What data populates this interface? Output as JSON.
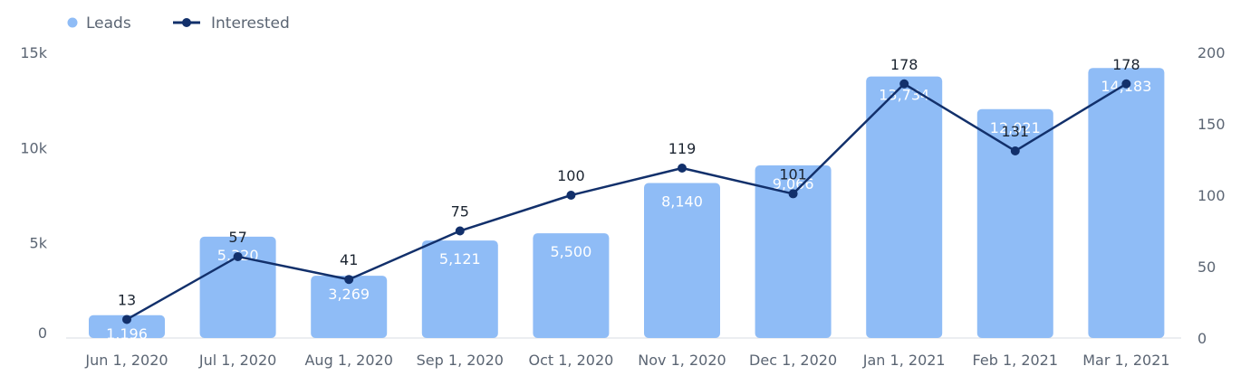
{
  "colors": {
    "bars": "#8fbcf6",
    "line": "#12306b",
    "axis_text": "#5b6573",
    "baseline": "#d9dde3"
  },
  "legend": {
    "leads": "Leads",
    "interested": "Interested"
  },
  "chart_data": {
    "type": "bar",
    "categories": [
      "Jun 1, 2020",
      "Jul 1, 2020",
      "Aug 1, 2020",
      "Sep 1, 2020",
      "Oct 1, 2020",
      "Nov 1, 2020",
      "Dec 1, 2020",
      "Jan 1, 2021",
      "Feb 1, 2021",
      "Mar 1, 2021"
    ],
    "series": [
      {
        "name": "Leads",
        "type": "bar",
        "axis": "left",
        "values": [
          1196,
          5320,
          3269,
          5121,
          5500,
          8140,
          9066,
          13734,
          12021,
          14183
        ],
        "labels": [
          "1,196",
          "5,320",
          "3,269",
          "5,121",
          "5,500",
          "8,140",
          "9,066",
          "13,734",
          "12,021",
          "14,183"
        ]
      },
      {
        "name": "Interested",
        "type": "line",
        "axis": "right",
        "values": [
          13,
          57,
          41,
          75,
          100,
          119,
          101,
          178,
          131,
          178
        ],
        "labels": [
          "13",
          "57",
          "41",
          "75",
          "100",
          "119",
          "101",
          "178",
          "131",
          "178"
        ]
      }
    ],
    "left_axis": {
      "ticks": [
        0,
        5000,
        10000,
        15000
      ],
      "tick_labels": [
        "0",
        "5k",
        "10k",
        "15k"
      ],
      "range": [
        0,
        15000
      ]
    },
    "right_axis": {
      "ticks": [
        0,
        50,
        100,
        150,
        200
      ],
      "tick_labels": [
        "0",
        "50",
        "100",
        "150",
        "200"
      ],
      "range": [
        0,
        200
      ]
    },
    "grid": false,
    "legend_position": "top-left"
  }
}
